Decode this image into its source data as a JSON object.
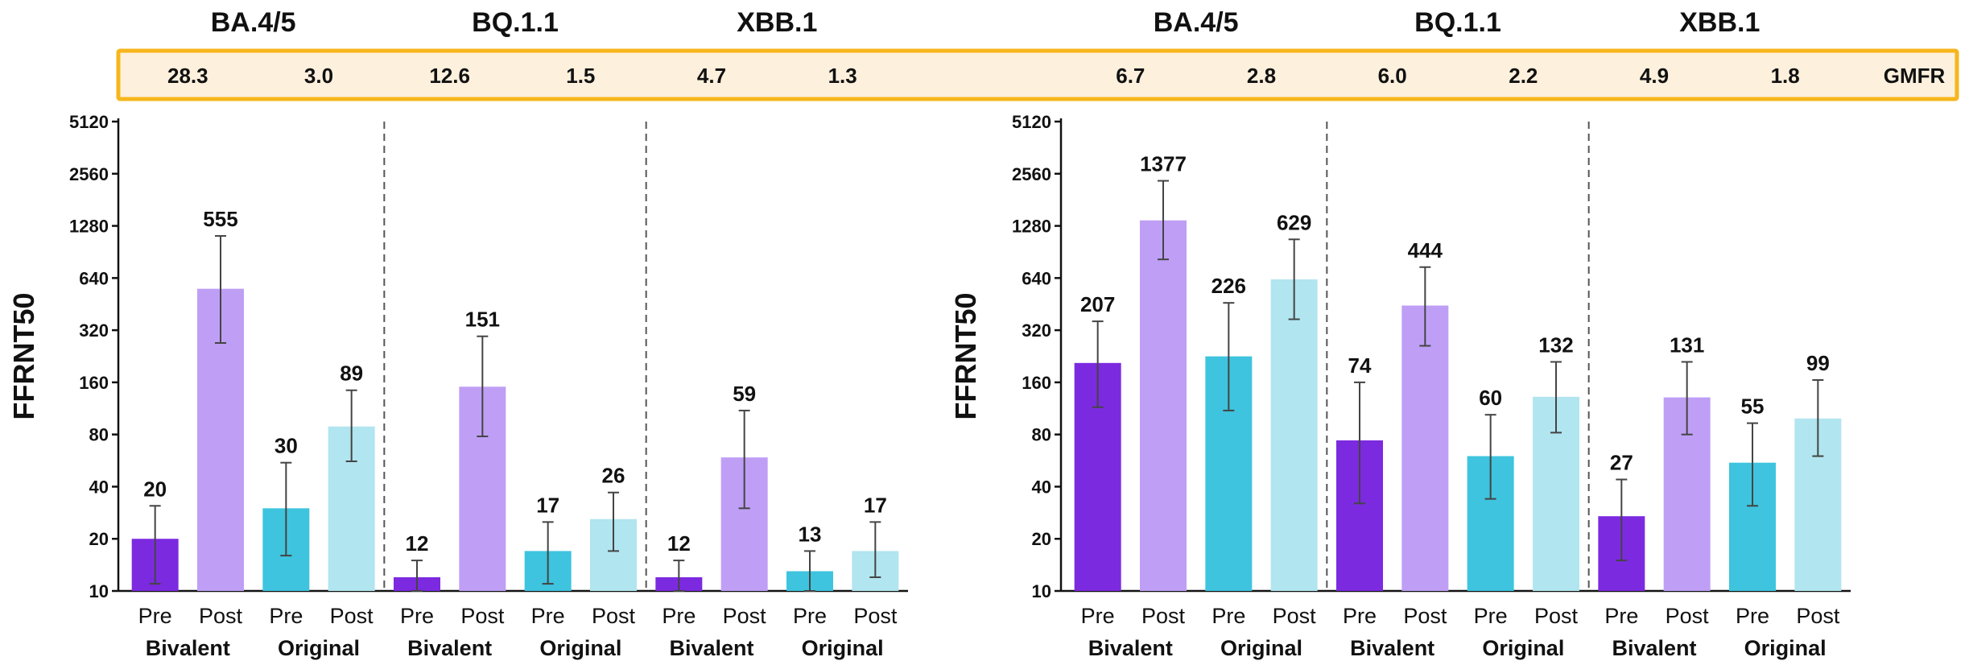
{
  "colors": {
    "bivalent_pre": "#7c2ae0",
    "bivalent_post": "#bf9ff5",
    "original_pre": "#3ec4de",
    "original_post": "#b1e5ef",
    "gmfr_fill": "#fdf0dc",
    "gmfr_border": "#f6b61c",
    "axis": "#111111",
    "divider": "#555555",
    "error_bar": "#444444"
  },
  "gmfr_label": "GMFR",
  "chart_data": [
    {
      "type": "bar",
      "ylabel": "FFRNT50",
      "yscale": "log2",
      "ylim": [
        10,
        5120
      ],
      "yticks": [
        "10",
        "20",
        "40",
        "80",
        "160",
        "320",
        "640",
        "1280",
        "2560",
        "5120"
      ],
      "groups": [
        {
          "variant": "BA.4/5",
          "gmfr": [
            "28.3",
            "3.0"
          ],
          "subgroups": [
            {
              "name": "Bivalent",
              "bars": [
                {
                  "label": "Pre",
                  "value": 20,
                  "err": [
                    11,
                    31
                  ]
                },
                {
                  "label": "Post",
                  "value": 555,
                  "err": [
                    270,
                    1120
                  ]
                }
              ]
            },
            {
              "name": "Original",
              "bars": [
                {
                  "label": "Pre",
                  "value": 30,
                  "err": [
                    16,
                    55
                  ]
                },
                {
                  "label": "Post",
                  "value": 89,
                  "err": [
                    56,
                    144
                  ]
                }
              ]
            }
          ]
        },
        {
          "variant": "BQ.1.1",
          "gmfr": [
            "12.6",
            "1.5"
          ],
          "subgroups": [
            {
              "name": "Bivalent",
              "bars": [
                {
                  "label": "Pre",
                  "value": 12,
                  "err": [
                    10,
                    15
                  ]
                },
                {
                  "label": "Post",
                  "value": 151,
                  "err": [
                    78,
                    295
                  ]
                }
              ]
            },
            {
              "name": "Original",
              "bars": [
                {
                  "label": "Pre",
                  "value": 17,
                  "err": [
                    11,
                    25
                  ]
                },
                {
                  "label": "Post",
                  "value": 26,
                  "err": [
                    17,
                    37
                  ]
                }
              ]
            }
          ]
        },
        {
          "variant": "XBB.1",
          "gmfr": [
            "4.7",
            "1.3"
          ],
          "subgroups": [
            {
              "name": "Bivalent",
              "bars": [
                {
                  "label": "Pre",
                  "value": 12,
                  "err": [
                    10,
                    15
                  ]
                },
                {
                  "label": "Post",
                  "value": 59,
                  "err": [
                    30,
                    110
                  ]
                }
              ]
            },
            {
              "name": "Original",
              "bars": [
                {
                  "label": "Pre",
                  "value": 13,
                  "err": [
                    10,
                    17
                  ]
                },
                {
                  "label": "Post",
                  "value": 17,
                  "err": [
                    12,
                    25
                  ]
                }
              ]
            }
          ]
        }
      ]
    },
    {
      "type": "bar",
      "ylabel": "FFRNT50",
      "yscale": "log2",
      "ylim": [
        10,
        5120
      ],
      "yticks": [
        "10",
        "20",
        "40",
        "80",
        "160",
        "320",
        "640",
        "1280",
        "2560",
        "5120"
      ],
      "groups": [
        {
          "variant": "BA.4/5",
          "gmfr": [
            "6.7",
            "2.8"
          ],
          "subgroups": [
            {
              "name": "Bivalent",
              "bars": [
                {
                  "label": "Pre",
                  "value": 207,
                  "err": [
                    115,
                    360
                  ]
                },
                {
                  "label": "Post",
                  "value": 1377,
                  "err": [
                    820,
                    2330
                  ]
                }
              ]
            },
            {
              "name": "Original",
              "bars": [
                {
                  "label": "Pre",
                  "value": 226,
                  "err": [
                    110,
                    460
                  ]
                },
                {
                  "label": "Post",
                  "value": 629,
                  "err": [
                    370,
                    1070
                  ]
                }
              ]
            }
          ]
        },
        {
          "variant": "BQ.1.1",
          "gmfr": [
            "6.0",
            "2.2"
          ],
          "subgroups": [
            {
              "name": "Bivalent",
              "bars": [
                {
                  "label": "Pre",
                  "value": 74,
                  "err": [
                    32,
                    160
                  ]
                },
                {
                  "label": "Post",
                  "value": 444,
                  "err": [
                    260,
                    740
                  ]
                }
              ]
            },
            {
              "name": "Original",
              "bars": [
                {
                  "label": "Pre",
                  "value": 60,
                  "err": [
                    34,
                    104
                  ]
                },
                {
                  "label": "Post",
                  "value": 132,
                  "err": [
                    82,
                    210
                  ]
                }
              ]
            }
          ]
        },
        {
          "variant": "XBB.1",
          "gmfr": [
            "4.9",
            "1.8"
          ],
          "subgroups": [
            {
              "name": "Bivalent",
              "bars": [
                {
                  "label": "Pre",
                  "value": 27,
                  "err": [
                    15,
                    44
                  ]
                },
                {
                  "label": "Post",
                  "value": 131,
                  "err": [
                    80,
                    210
                  ]
                }
              ]
            },
            {
              "name": "Original",
              "bars": [
                {
                  "label": "Pre",
                  "value": 55,
                  "err": [
                    31,
                    93
                  ]
                },
                {
                  "label": "Post",
                  "value": 99,
                  "err": [
                    60,
                    165
                  ]
                }
              ]
            }
          ]
        }
      ]
    }
  ]
}
